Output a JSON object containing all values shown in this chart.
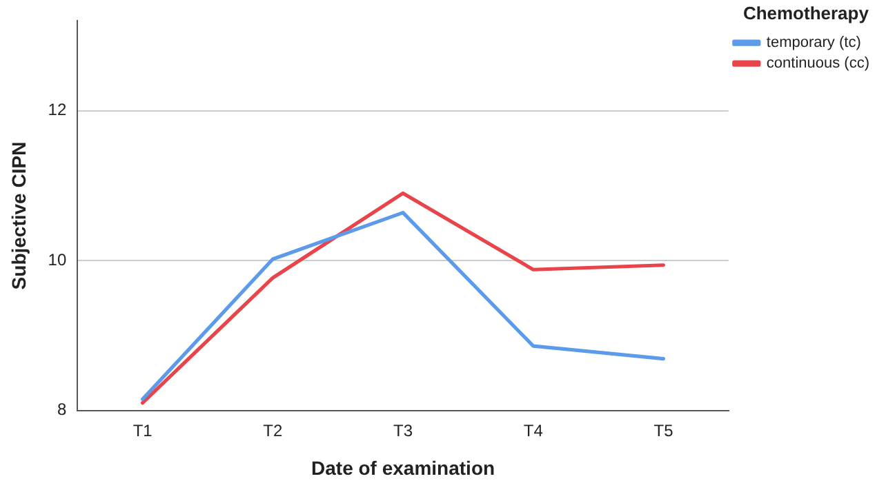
{
  "chart_data": {
    "type": "line",
    "xlabel": "Date of examination",
    "ylabel": "Subjective CIPN",
    "legend_title": "Chemotherapy",
    "categories": [
      "T1",
      "T2",
      "T3",
      "T4",
      "T5"
    ],
    "series": [
      {
        "name": "temporary (tc)",
        "color": "#5b9bea",
        "values": [
          8.15,
          10.02,
          10.64,
          8.86,
          8.69
        ]
      },
      {
        "name": "continuous (cc)",
        "color": "#e8444a",
        "values": [
          8.1,
          9.77,
          10.9,
          9.88,
          9.94
        ]
      }
    ],
    "ylim": [
      8,
      13.2
    ],
    "yticks": [
      8,
      10,
      12
    ],
    "grid": "y",
    "legend": "top right",
    "marker": "none",
    "line_style": "solid"
  }
}
